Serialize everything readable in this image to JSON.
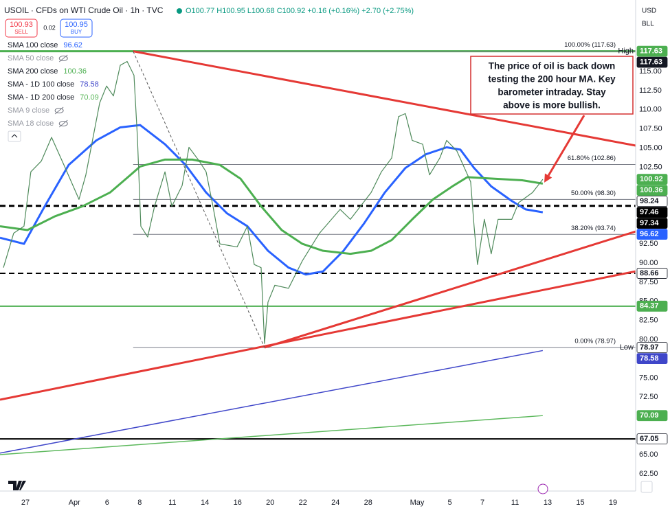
{
  "chart_data": {
    "type": "line",
    "title": "USOIL · CFDs on WTI Crude Oil · 1h · TVC",
    "quote": "O100.77 H100.95 L100.68 C100.92 +0.16 (+0.16%) +2.70 (+2.75%)",
    "sell": {
      "price": 100.93,
      "label": "SELL"
    },
    "spread": 0.02,
    "buy": {
      "price": 100.95,
      "label": "BUY"
    },
    "currency": "USD",
    "unit": "BLL",
    "xlim": [
      -1.56,
      37.39
    ],
    "xticks": [
      {
        "value": 0,
        "label": "27"
      },
      {
        "value": 3,
        "label": "Apr"
      },
      {
        "value": 5,
        "label": "6"
      },
      {
        "value": 7,
        "label": "8"
      },
      {
        "value": 9,
        "label": "11"
      },
      {
        "value": 11,
        "label": "14"
      },
      {
        "value": 13,
        "label": "16"
      },
      {
        "value": 15,
        "label": "20"
      },
      {
        "value": 17,
        "label": "22"
      },
      {
        "value": 19,
        "label": "24"
      },
      {
        "value": 21,
        "label": "28"
      },
      {
        "value": 24,
        "label": "May"
      },
      {
        "value": 26,
        "label": "5"
      },
      {
        "value": 28,
        "label": "7"
      },
      {
        "value": 30,
        "label": "11"
      },
      {
        "value": 32,
        "label": "13"
      },
      {
        "value": 34,
        "label": "15"
      },
      {
        "value": 36,
        "label": "19"
      }
    ],
    "ylim": [
      60.25,
      124.32
    ],
    "yticks": [
      {
        "value": 115,
        "label": "115.00"
      },
      {
        "value": 112.5,
        "label": "112.50"
      },
      {
        "value": 110,
        "label": "110.00"
      },
      {
        "value": 107.5,
        "label": "107.50"
      },
      {
        "value": 105,
        "label": "105.00"
      },
      {
        "value": 102.5,
        "label": "102.50"
      },
      {
        "value": 92.5,
        "label": "92.50"
      },
      {
        "value": 90,
        "label": "90.00"
      },
      {
        "value": 87.5,
        "label": "87.50"
      },
      {
        "value": 85,
        "label": "85.00"
      },
      {
        "value": 82.5,
        "label": "82.50"
      },
      {
        "value": 80,
        "label": "80.00"
      },
      {
        "value": 75,
        "label": "75.00"
      },
      {
        "value": 72.5,
        "label": "72.50"
      },
      {
        "value": 65,
        "label": "65.00"
      },
      {
        "value": 62.5,
        "label": "62.50"
      }
    ],
    "price": {
      "color": "#4f8a5b",
      "x": [
        -1.35,
        -0.72,
        -0.09,
        0.33,
        0.97,
        1.6,
        2.44,
        3.28,
        3.7,
        4.55,
        4.97,
        5.39,
        5.81,
        6.23,
        6.65,
        6.86,
        7.07,
        7.49,
        7.91,
        8.55,
        8.97,
        9.6,
        10.02,
        10.65,
        11.07,
        11.49,
        11.91,
        12.97,
        13.6,
        14.02,
        14.44,
        14.65,
        14.86,
        15.28,
        16.12,
        16.97,
        18.02,
        19.28,
        19.91,
        21.18,
        21.81,
        22.44,
        22.86,
        23.28,
        23.7,
        24.34,
        24.76,
        25.39,
        25.81,
        26.44,
        27.28,
        27.49,
        27.7,
        28.12,
        28.54,
        28.96,
        29.8,
        30.23,
        31.07,
        31.7
      ],
      "values": [
        89.4,
        93.9,
        94.8,
        101.9,
        103.3,
        106.4,
        102.4,
        98.3,
        101.5,
        110.9,
        113.1,
        111.8,
        115.8,
        116.3,
        114.5,
        106.4,
        94.8,
        93.4,
        97.4,
        101.9,
        97.4,
        100.1,
        105.1,
        103.3,
        101.9,
        97.4,
        92.5,
        92.1,
        94.8,
        89.8,
        89.4,
        79.5,
        84.9,
        87.1,
        86.7,
        90.3,
        93.9,
        97.0,
        95.7,
        99.2,
        101.9,
        103.7,
        109.1,
        109.5,
        106.0,
        105.5,
        101.5,
        103.7,
        106.0,
        104.6,
        100.6,
        94.8,
        89.8,
        95.7,
        91.2,
        95.7,
        95.7,
        97.9,
        99.2,
        100.92
      ]
    },
    "series": [
      {
        "name": "SMA 100 close",
        "color": "#2962ff",
        "width": 3,
        "x": [
          -1.56,
          -0.09,
          1.18,
          2.65,
          4.34,
          5.81,
          7.03,
          8.55,
          9.81,
          11.07,
          12.34,
          13.6,
          14.86,
          16.12,
          17.18,
          18.23,
          19.49,
          20.76,
          22.02,
          23.28,
          24.55,
          25.81,
          26.65,
          27.49,
          28.54,
          29.8,
          30.65,
          31.7
        ],
        "values": [
          93.3,
          92.5,
          97.4,
          102.8,
          106.0,
          107.7,
          108.0,
          105.5,
          102.8,
          99.2,
          96.5,
          94.8,
          91.6,
          89.4,
          88.5,
          88.9,
          91.6,
          95.2,
          99.2,
          102.4,
          104.2,
          105.1,
          104.8,
          102.4,
          100.0,
          98.1,
          97.0,
          96.62
        ]
      },
      {
        "name": "SMA 50 close",
        "hidden": true
      },
      {
        "name": "SMA 200 close",
        "color": "#4caf50",
        "width": 3,
        "x": [
          -1.56,
          0.12,
          1.81,
          3.49,
          5.18,
          6.44,
          7.03,
          8.55,
          10.23,
          11.91,
          13.18,
          14.44,
          15.7,
          16.97,
          18.23,
          19.91,
          21.18,
          22.44,
          23.7,
          24.97,
          26.23,
          27.07,
          28.75,
          30.44,
          31.7
        ],
        "values": [
          94.8,
          94.3,
          96.1,
          97.4,
          99.2,
          101.5,
          102.6,
          103.5,
          103.5,
          102.8,
          101.0,
          97.4,
          94.3,
          92.5,
          91.6,
          91.2,
          91.6,
          93.0,
          95.7,
          98.3,
          100.1,
          101.2,
          101.0,
          100.8,
          100.36
        ]
      },
      {
        "name": "SMA - 1D 100 close",
        "color": "#3f46c9",
        "width": 1.5,
        "x": [
          -1.56,
          31.7
        ],
        "values": [
          65.2,
          78.58
        ]
      },
      {
        "name": "SMA - 1D 200 close",
        "color": "#5cb85c",
        "width": 1.5,
        "x": [
          -1.56,
          31.7
        ],
        "values": [
          65.0,
          70.09
        ]
      },
      {
        "name": "SMA 9 close",
        "hidden": true
      },
      {
        "name": "SMA 18 close",
        "hidden": true
      }
    ],
    "levels": [
      {
        "value": 117.63,
        "color": "#4caf50",
        "style": "solid",
        "width": 3
      },
      {
        "value": 97.46,
        "color": "#000000",
        "style": "dashed",
        "width": 3
      },
      {
        "value": 88.66,
        "color": "#000000",
        "style": "dashed",
        "width": 2
      },
      {
        "value": 84.37,
        "color": "#4caf50",
        "style": "solid",
        "width": 2
      },
      {
        "value": 67.05,
        "color": "#000000",
        "style": "solid",
        "width": 2
      }
    ],
    "fib": {
      "start": 6.6,
      "levels": [
        {
          "value": 117.63,
          "label": "100.00% (117.63)"
        },
        {
          "value": 102.86,
          "label": "61.80% (102.86)"
        },
        {
          "value": 98.3,
          "label": "50.00% (98.30)"
        },
        {
          "value": 93.74,
          "label": "38.20% (93.74)"
        },
        {
          "value": 78.97,
          "label": "0.00% (78.97)"
        }
      ]
    },
    "trendlines": [
      {
        "color": "#e53935",
        "style": "solid",
        "x": [
          6.6,
          37.39
        ],
        "values": [
          117.63,
          105.32
        ]
      },
      {
        "color": "#e53935",
        "style": "solid",
        "x": [
          -1.56,
          37.39
        ],
        "values": [
          72.17,
          88.92
        ]
      },
      {
        "color": "#e53935",
        "style": "solid",
        "x": [
          14.65,
          37.39
        ],
        "values": [
          78.97,
          94.12
        ]
      },
      {
        "color": "#555555",
        "style": "dashed",
        "x": [
          6.6,
          14.65
        ],
        "values": [
          117.63,
          78.97
        ]
      }
    ],
    "price_labels": [
      {
        "value": 117.63,
        "bg": "#4caf50",
        "fg": "#ffffff"
      },
      {
        "value": 117.63,
        "bg": "#131722",
        "fg": "#ffffff"
      },
      {
        "value": 100.92,
        "bg": "#4caf50",
        "fg": "#ffffff"
      },
      {
        "value": 100.36,
        "bg": "#4caf50",
        "fg": "#ffffff"
      },
      {
        "value": 98.24,
        "bg": "#ffffff",
        "fg": "#131722"
      },
      {
        "value": 97.46,
        "bg": "#000000",
        "fg": "#ffffff"
      },
      {
        "value": 97.34,
        "bg": "#000000",
        "fg": "#ffffff"
      },
      {
        "value": 96.62,
        "bg": "#2962ff",
        "fg": "#ffffff"
      },
      {
        "value": 88.66,
        "bg": "#ffffff",
        "fg": "#131722"
      },
      {
        "value": 84.37,
        "bg": "#4caf50",
        "fg": "#ffffff"
      },
      {
        "value": 78.97,
        "bg": "#ffffff",
        "fg": "#131722"
      },
      {
        "value": 78.58,
        "bg": "#3f46c9",
        "fg": "#ffffff"
      },
      {
        "value": 70.09,
        "bg": "#4caf50",
        "fg": "#ffffff"
      },
      {
        "value": 67.05,
        "bg": "#ffffff",
        "fg": "#131722"
      }
    ],
    "axis_tags": [
      {
        "value": 117.63,
        "label": "High"
      },
      {
        "value": 78.97,
        "label": "Low"
      }
    ],
    "annotation": {
      "lines": [
        "The price of oil is back down",
        "testing the 200 hour MA. Key",
        "barometer intraday. Stay",
        "above is more bullish."
      ],
      "arrow_to": {
        "x": 31.79,
        "y": 100.49
      }
    }
  }
}
